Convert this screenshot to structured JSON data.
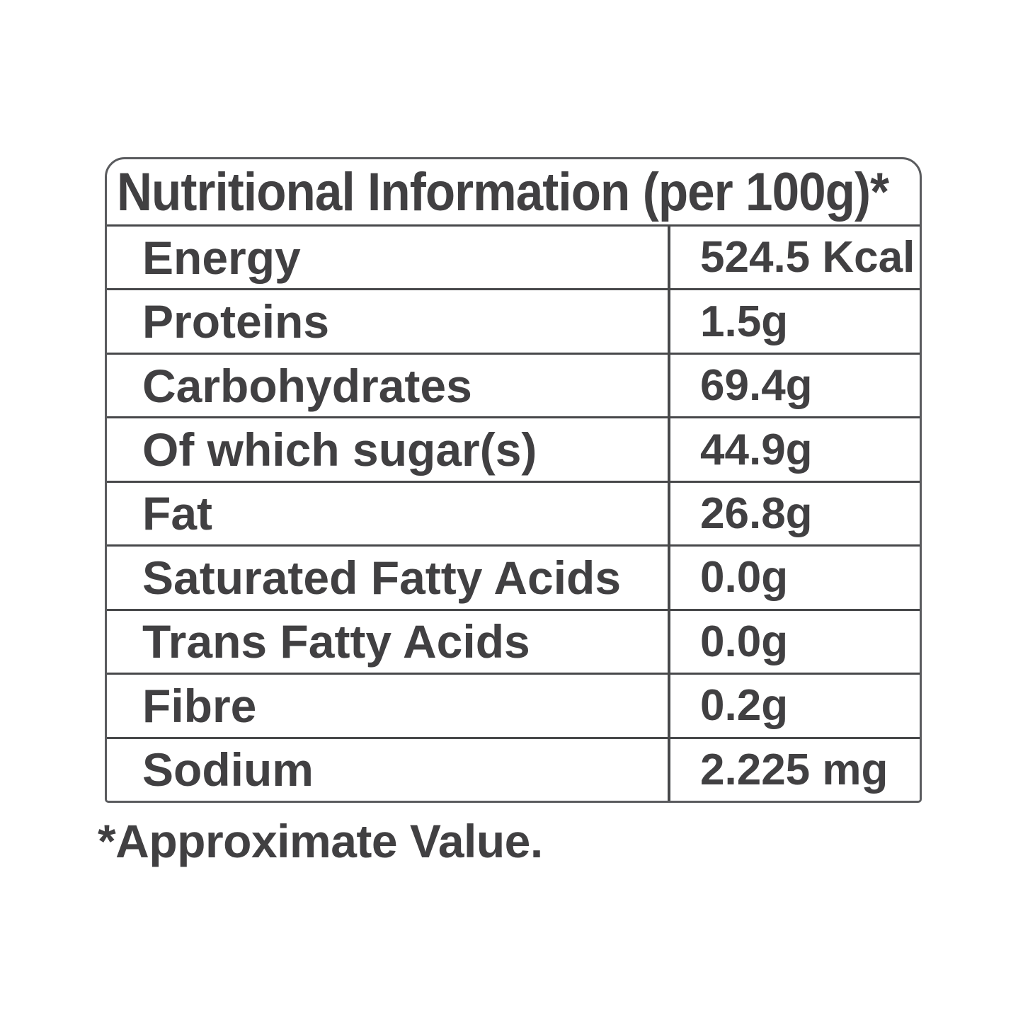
{
  "table": {
    "title": "Nutritional Information (per 100g)*",
    "rows": [
      {
        "label": "Energy",
        "value": "524.5 Kcal"
      },
      {
        "label": "Proteins",
        "value": "1.5g"
      },
      {
        "label": "Carbohydrates",
        "value": "69.4g"
      },
      {
        "label": "Of which sugar(s)",
        "value": "44.9g"
      },
      {
        "label": "Fat",
        "value": "26.8g"
      },
      {
        "label": "Saturated Fatty Acids",
        "value": "0.0g"
      },
      {
        "label": "Trans Fatty Acids",
        "value": "0.0g"
      },
      {
        "label": "Fibre",
        "value": "0.2g"
      },
      {
        "label": "Sodium",
        "value": "2.225 mg"
      }
    ],
    "footnote": "*Approximate Value."
  },
  "colors": {
    "text": "#414042",
    "grid_lines": "#47484a",
    "outer_border": "#5a5b5e",
    "background": "#ffffff"
  }
}
